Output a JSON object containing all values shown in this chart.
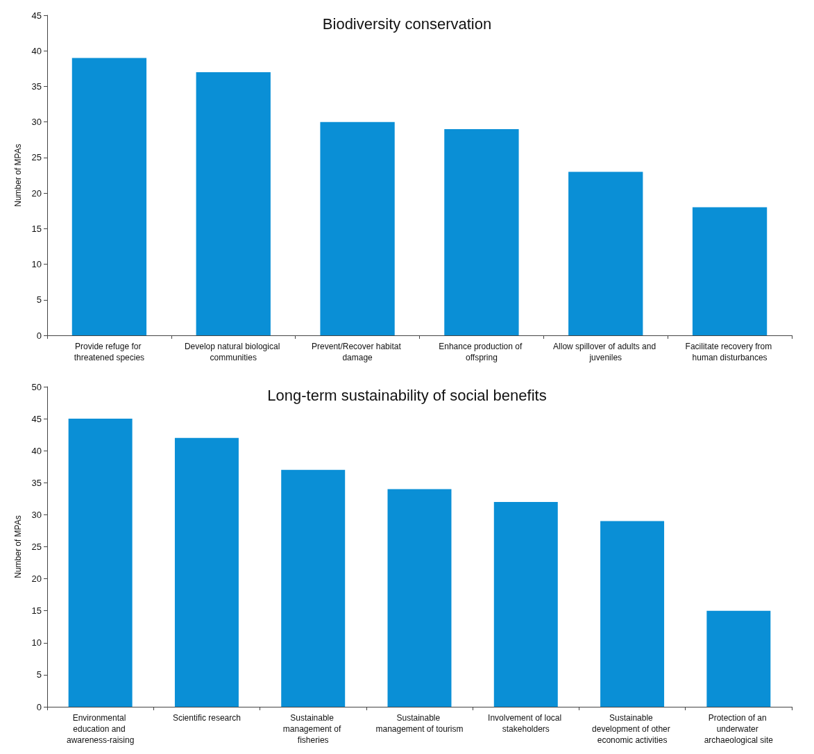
{
  "chart_data": [
    {
      "type": "bar",
      "title": "Biodiversity conservation",
      "ylabel": "Number of MPAs",
      "categories": [
        "Provide refuge for threatened species",
        "Develop natural biological communities",
        "Prevent/Recover habitat damage",
        "Enhance production of offspring",
        "Allow spillover of adults and juveniles",
        "Facilitate recovery from human disturbances"
      ],
      "values": [
        39,
        37,
        30,
        29,
        23,
        18
      ],
      "color": "#0a8fd6",
      "ylim": [
        0,
        45
      ],
      "yticks": [
        0,
        5,
        10,
        15,
        20,
        25,
        30,
        35,
        40,
        45
      ],
      "grid": false
    },
    {
      "type": "bar",
      "title": "Long-term sustainability of social benefits",
      "ylabel": "Number of MPAs",
      "categories": [
        "Environmental education and awareness-raising",
        "Scientific research",
        "Sustainable management of fisheries",
        "Sustainable management of tourism",
        "Involvement of local stakeholders",
        "Sustainable development of other economic activities",
        "Protection of an underwater archaeological site"
      ],
      "values": [
        45,
        42,
        37,
        34,
        32,
        29,
        15
      ],
      "color": "#0a8fd6",
      "ylim": [
        0,
        50
      ],
      "yticks": [
        0,
        5,
        10,
        15,
        20,
        25,
        30,
        35,
        40,
        45,
        50
      ],
      "grid": false
    }
  ]
}
